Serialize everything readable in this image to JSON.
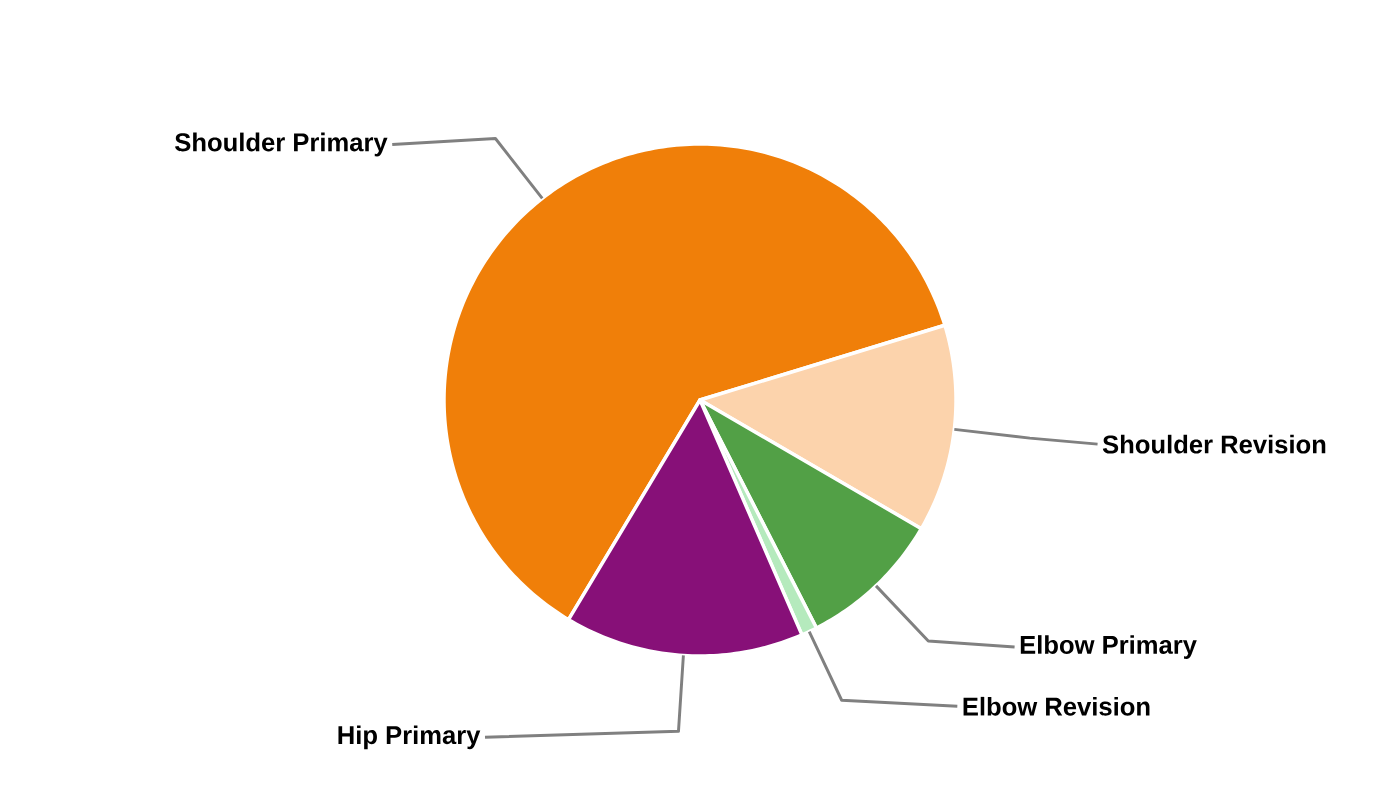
{
  "chart_data": {
    "type": "pie",
    "categories": [
      "Shoulder Primary",
      "Shoulder Revision",
      "Elbow Primary",
      "Elbow Revision",
      "Hip Primary"
    ],
    "values": [
      61.7,
      13.1,
      9.1,
      1.0,
      15.1
    ],
    "colors": [
      "#f07f09",
      "#fcd3ac",
      "#52a046",
      "#b5eabd",
      "#871078"
    ]
  }
}
